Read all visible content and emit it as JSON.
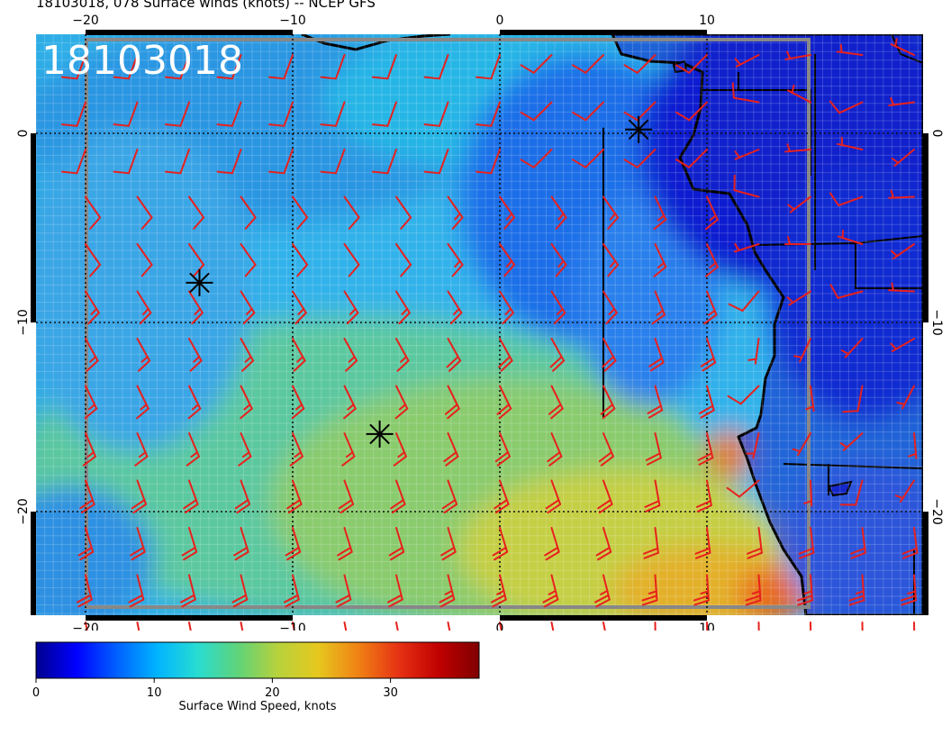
{
  "header": {
    "title": "18103018, 078 Surface winds (knots) -- NCEP GFS"
  },
  "map": {
    "stamp": "18103018",
    "lon_range": [
      -22.5,
      21
    ],
    "lat_range": [
      -25.5,
      5.2
    ],
    "grid_lons": [
      -20,
      -10,
      0,
      10
    ],
    "grid_lats": [
      0,
      -10,
      -20
    ],
    "x_tick_labels": [
      "−20",
      "−10",
      "0",
      "10"
    ],
    "y_tick_labels": [
      "0",
      "−10",
      "−20"
    ],
    "colors": {
      "barb": "#e8201c",
      "coast": "#000000",
      "grid": "#111111",
      "box": "#888888"
    },
    "stars": [
      {
        "lon": -14.5,
        "lat": -7.9
      },
      {
        "lon": -5.8,
        "lat": -15.9
      },
      {
        "lon": 6.7,
        "lat": 0.2
      }
    ],
    "track_line": {
      "lon": 5,
      "lat_from": 0.3,
      "lat_to": -15
    },
    "wind_barbs": {
      "lons": [
        -20,
        -17.5,
        -15,
        -12.5,
        -10,
        -7.5,
        -5,
        -2.5,
        0,
        2.5,
        5,
        7.5,
        10,
        12.5,
        15,
        17.5,
        20
      ],
      "lats": [
        5,
        2.5,
        0,
        -2.5,
        -5,
        -7.5,
        -10,
        -12.5,
        -15,
        -17.5,
        -20,
        -22.5,
        -25
      ],
      "note_units": "knots; direction = degrees the wind blows from"
    }
  },
  "colorbar": {
    "ticks": [
      0,
      10,
      20,
      30
    ],
    "max": 37.5,
    "label": "Surface Wind Speed, knots",
    "colors": [
      "#00008f",
      "#0000ff",
      "#0060ff",
      "#00b4ff",
      "#28dcd2",
      "#5ed37a",
      "#b6d23c",
      "#e6c81e",
      "#f08214",
      "#e63214",
      "#c00000",
      "#800000"
    ]
  }
}
